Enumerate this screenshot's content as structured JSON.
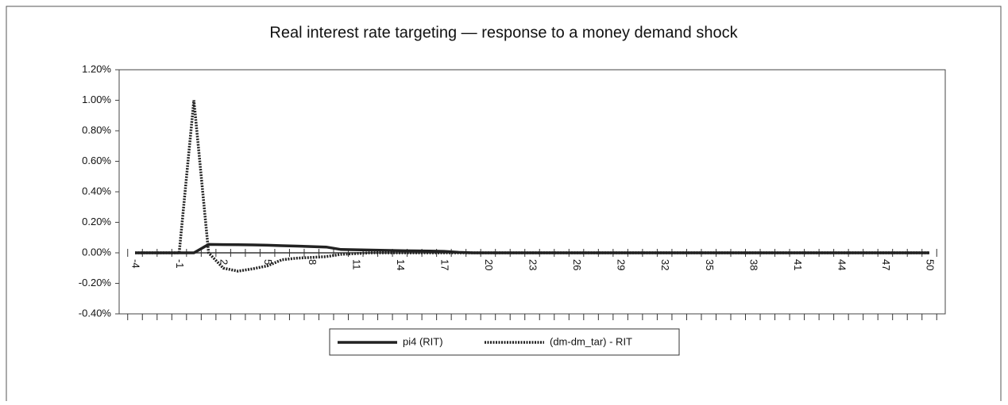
{
  "chart_data": {
    "type": "line",
    "title": "Real interest rate targeting — response to a money demand shock",
    "categories": [
      -4,
      null,
      null,
      -1,
      null,
      null,
      2,
      null,
      null,
      5,
      null,
      null,
      8,
      null,
      null,
      11,
      null,
      null,
      14,
      null,
      null,
      17,
      null,
      null,
      20,
      null,
      null,
      23,
      null,
      null,
      26,
      null,
      null,
      29,
      null,
      null,
      32,
      null,
      null,
      35,
      null,
      null,
      38,
      null,
      null,
      41,
      null,
      null,
      44,
      null,
      null,
      47,
      null,
      null,
      50
    ],
    "series": [
      {
        "name": "pi4 (RIT)",
        "color": "#222222",
        "style": "solid",
        "values": [
          0,
          0,
          0,
          0,
          0,
          0.055,
          0.054,
          0.053,
          0.052,
          0.05,
          0.047,
          0.044,
          0.041,
          0.038,
          0.022,
          0.02,
          0.018,
          0.016,
          0.014,
          0.013,
          0.012,
          0.01,
          0.003,
          0,
          0,
          0,
          0,
          0,
          0,
          0,
          0,
          0,
          0,
          0,
          0,
          0,
          0,
          0,
          0,
          0,
          0,
          0,
          0,
          0,
          0,
          0,
          0,
          0,
          0,
          0,
          0,
          0,
          0,
          0,
          0
        ]
      },
      {
        "name": "(dm-dm_tar) - RIT",
        "color": "#222222",
        "style": "dotted",
        "values": [
          0,
          0,
          0,
          0,
          1.0,
          0,
          -0.1,
          -0.12,
          -0.105,
          -0.085,
          -0.045,
          -0.035,
          -0.03,
          -0.025,
          -0.01,
          -0.005,
          0,
          0,
          0,
          0,
          0,
          0,
          0,
          0,
          0,
          0,
          0,
          0,
          0,
          0,
          0,
          0,
          0,
          0,
          0,
          0,
          0,
          0,
          0,
          0,
          0,
          0,
          0,
          0,
          0,
          0,
          0,
          0,
          0,
          0,
          0,
          0,
          0,
          0,
          0
        ]
      }
    ],
    "ylim": [
      -0.4,
      1.2
    ],
    "yticks": [
      {
        "value": -0.4,
        "label": "-0.40%"
      },
      {
        "value": -0.2,
        "label": "-0.20%"
      },
      {
        "value": 0,
        "label": "0.00%"
      },
      {
        "value": 0.2,
        "label": "0.20%"
      },
      {
        "value": 0.4,
        "label": "0.40%"
      },
      {
        "value": 0.6,
        "label": "0.60%"
      },
      {
        "value": 0.8,
        "label": "0.80%"
      },
      {
        "value": 1.0,
        "label": "1.00%"
      },
      {
        "value": 1.2,
        "label": "1.20%"
      }
    ],
    "grid": false,
    "legend": "bottom"
  }
}
